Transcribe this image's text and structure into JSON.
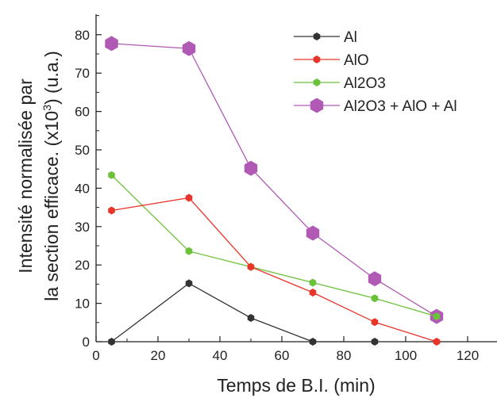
{
  "chart_data": {
    "type": "line",
    "xlabel": "Temps de B.I. (min)",
    "ylabel_line1": "Intensité normalisée par",
    "ylabel_line2_pre": "la section efficace. (x10",
    "ylabel_line2_sup": "3",
    "ylabel_line2_post": ") (u.a.)",
    "xlim": [
      0,
      130
    ],
    "ylim": [
      0,
      85
    ],
    "xticks": [
      0,
      20,
      40,
      60,
      80,
      100,
      120
    ],
    "yticks": [
      0,
      10,
      20,
      30,
      40,
      50,
      60,
      70,
      80
    ],
    "legend_position": "top-right",
    "series": [
      {
        "name": "Al",
        "color": "#333333",
        "marker": "small",
        "x": [
          5,
          30,
          50,
          70,
          90
        ],
        "y": [
          0,
          15.2,
          6.2,
          0,
          0
        ]
      },
      {
        "name": "AlO",
        "color": "#e8352a",
        "marker": "small",
        "x": [
          5,
          30,
          50,
          70,
          90,
          110
        ],
        "y": [
          34.2,
          37.5,
          19.5,
          12.8,
          5.1,
          0
        ]
      },
      {
        "name": "Al2O3",
        "color": "#6cc13b",
        "marker": "small",
        "x": [
          5,
          30,
          50,
          70,
          90,
          110
        ],
        "y": [
          43.4,
          23.6,
          19.5,
          15.4,
          11.3,
          6.6
        ]
      },
      {
        "name": "Al2O3 + AlO + Al",
        "color": "#b05ab5",
        "marker": "large",
        "x": [
          5,
          30,
          50,
          70,
          90,
          110
        ],
        "y": [
          77.7,
          76.4,
          45.2,
          28.3,
          16.4,
          6.6
        ]
      }
    ]
  }
}
